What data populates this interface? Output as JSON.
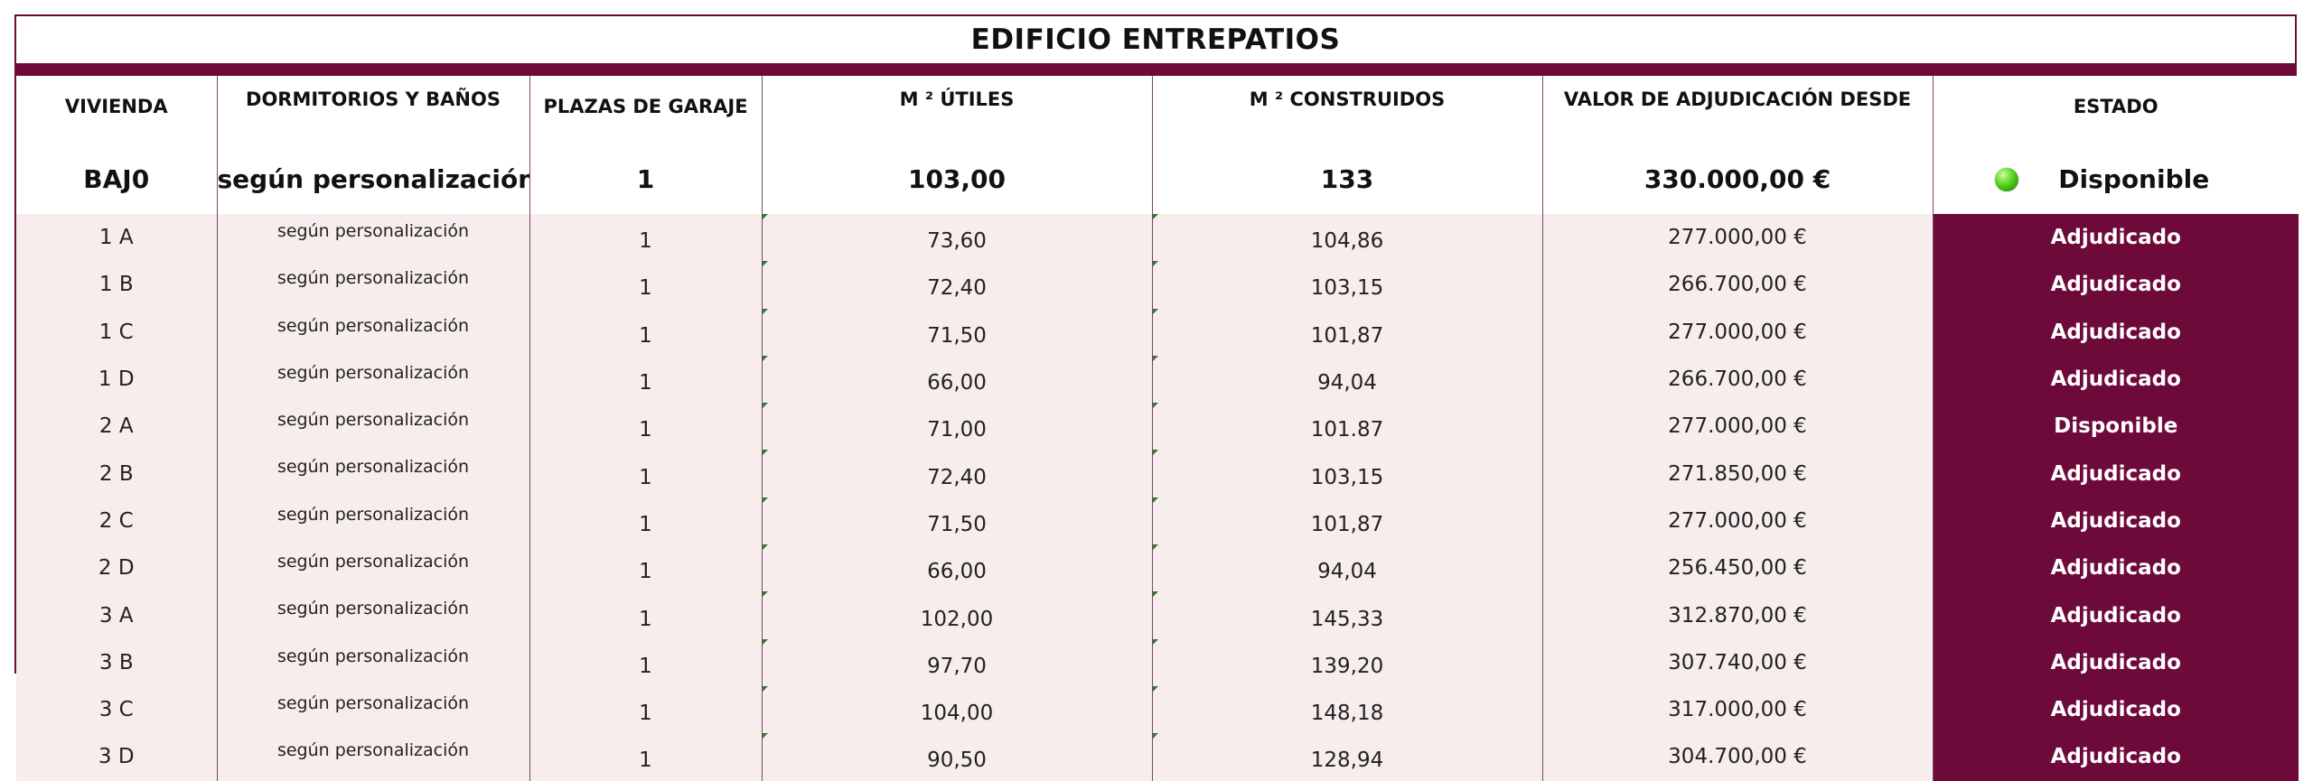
{
  "title": "EDIFICIO ENTREPATIOS",
  "headers": {
    "vivienda": "VIVIENDA",
    "dormitorios": "DORMITORIOS Y BAÑOS",
    "garaje": "PLAZAS DE GARAJE",
    "utiles": "M ² ÚTILES",
    "construidos": "M ² CONSTRUIDOS",
    "valor": "VALOR DE ADJUDICACIÓN DESDE",
    "estado": "ESTADO"
  },
  "bajo": {
    "vivienda": "BAJ0",
    "dormitorios": "según personalización",
    "garaje": "1",
    "utiles": "103,00",
    "construidos": "133",
    "valor": "330.000,00 €",
    "estado": "Disponible",
    "estado_icon": "green-status-light-icon"
  },
  "rows": [
    {
      "vivienda": "1 A",
      "dormitorios": "según personalización",
      "garaje": "1",
      "utiles": "73,60",
      "construidos": "104,86",
      "valor": "277.000,00 €",
      "estado": "Adjudicado"
    },
    {
      "vivienda": "1 B",
      "dormitorios": "según personalización",
      "garaje": "1",
      "utiles": "72,40",
      "construidos": "103,15",
      "valor": "266.700,00 €",
      "estado": "Adjudicado"
    },
    {
      "vivienda": "1 C",
      "dormitorios": "según personalización",
      "garaje": "1",
      "utiles": "71,50",
      "construidos": "101,87",
      "valor": "277.000,00 €",
      "estado": "Adjudicado"
    },
    {
      "vivienda": "1 D",
      "dormitorios": "según personalización",
      "garaje": "1",
      "utiles": "66,00",
      "construidos": "94,04",
      "valor": "266.700,00 €",
      "estado": "Adjudicado"
    },
    {
      "vivienda": "2 A",
      "dormitorios": "según personalización",
      "garaje": "1",
      "utiles": "71,00",
      "construidos": "101.87",
      "valor": "277.000,00 €",
      "estado": "Disponible"
    },
    {
      "vivienda": "2 B",
      "dormitorios": "según personalización",
      "garaje": "1",
      "utiles": "72,40",
      "construidos": "103,15",
      "valor": "271.850,00 €",
      "estado": "Adjudicado"
    },
    {
      "vivienda": "2 C",
      "dormitorios": "según personalización",
      "garaje": "1",
      "utiles": "71,50",
      "construidos": "101,87",
      "valor": "277.000,00 €",
      "estado": "Adjudicado"
    },
    {
      "vivienda": "2 D",
      "dormitorios": "según personalización",
      "garaje": "1",
      "utiles": "66,00",
      "construidos": "94,04",
      "valor": "256.450,00 €",
      "estado": "Adjudicado"
    },
    {
      "vivienda": "3 A",
      "dormitorios": "según personalización",
      "garaje": "1",
      "utiles": "102,00",
      "construidos": "145,33",
      "valor": "312.870,00 €",
      "estado": "Adjudicado"
    },
    {
      "vivienda": "3 B",
      "dormitorios": "según personalización",
      "garaje": "1",
      "utiles": "97,70",
      "construidos": "139,20",
      "valor": "307.740,00 €",
      "estado": "Adjudicado"
    },
    {
      "vivienda": "3 C",
      "dormitorios": "según personalización",
      "garaje": "1",
      "utiles": "104,00",
      "construidos": "148,18",
      "valor": "317.000,00 €",
      "estado": "Adjudicado"
    },
    {
      "vivienda": "3 D",
      "dormitorios": "según personalización",
      "garaje": "1",
      "utiles": "90,50",
      "construidos": "128,94",
      "valor": "304.700,00 €",
      "estado": "Adjudicado"
    }
  ],
  "colors": {
    "accent": "#6e0a3a",
    "row_background": "#f7eded",
    "status_text": "#ffffff",
    "available_light": "#55d21e"
  }
}
